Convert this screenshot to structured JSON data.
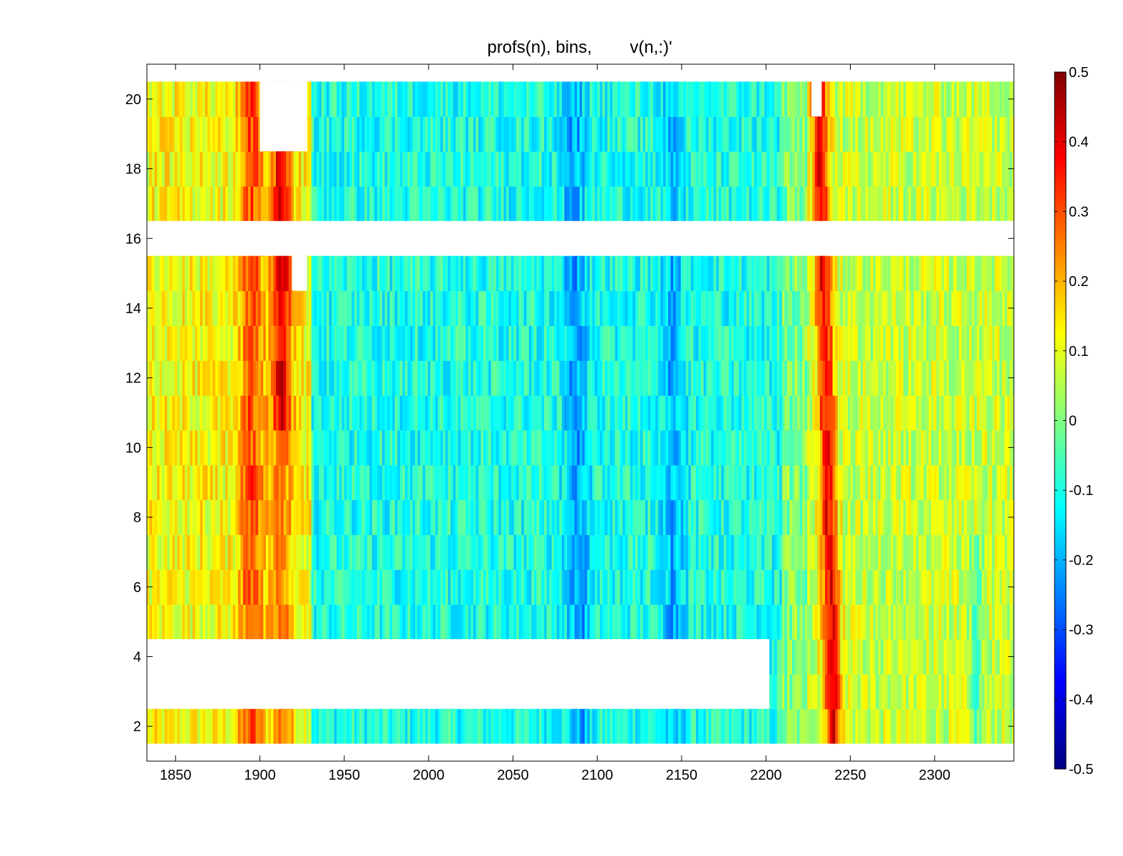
{
  "chart_data": {
    "type": "heatmap",
    "title": "profs(n), bins,        v(n,:)'",
    "xlabel": "",
    "ylabel": "",
    "xlim": [
      1833,
      2347
    ],
    "ylim": [
      1,
      21
    ],
    "x_ticks": [
      1850,
      1900,
      1950,
      2000,
      2050,
      2100,
      2150,
      2200,
      2250,
      2300
    ],
    "y_ticks": [
      2,
      4,
      6,
      8,
      10,
      12,
      14,
      16,
      18,
      20
    ],
    "colormap": "jet",
    "clim": [
      -0.5,
      0.5
    ],
    "colorbar_ticks": [
      "0.5",
      "0.4",
      "0.3",
      "0.2",
      "0.1",
      "0",
      "-0.1",
      "-0.2",
      "-0.3",
      "-0.4",
      "-0.5"
    ],
    "colorbar_tick_values": [
      0.5,
      0.4,
      0.3,
      0.2,
      0.1,
      0,
      -0.1,
      -0.2,
      -0.3,
      -0.4,
      -0.5
    ],
    "rows": [
      2,
      3,
      4,
      5,
      6,
      7,
      8,
      9,
      10,
      11,
      12,
      13,
      14,
      15,
      16,
      17,
      18,
      19,
      20
    ],
    "missing_regions": [
      {
        "rows": [
          1,
          1
        ],
        "x": [
          1833,
          2347
        ]
      },
      {
        "rows": [
          3,
          4
        ],
        "x": [
          1833,
          2202
        ]
      },
      {
        "rows": [
          16,
          16
        ],
        "x": [
          1833,
          2347
        ]
      },
      {
        "rows": [
          19,
          20
        ],
        "x": [
          1900,
          1928
        ]
      },
      {
        "rows": [
          15,
          15
        ],
        "x": [
          1919,
          1928
        ]
      },
      {
        "rows": [
          20,
          20
        ],
        "x": [
          2227,
          2233
        ]
      }
    ],
    "features": [
      {
        "description_value": "positive band",
        "x_center": 1895,
        "width": 8,
        "value": 0.3
      },
      {
        "description_value": "positive band",
        "x_center": 1913,
        "width": 10,
        "value": 0.4
      },
      {
        "description_value": "negative band",
        "x_center": 2088,
        "width": 14,
        "value": -0.25
      },
      {
        "description_value": "negative band",
        "x_center": 2145,
        "width": 12,
        "value": -0.2
      },
      {
        "description_value": "positive band",
        "x_center": 2237,
        "width": 12,
        "value": 0.38
      }
    ]
  }
}
